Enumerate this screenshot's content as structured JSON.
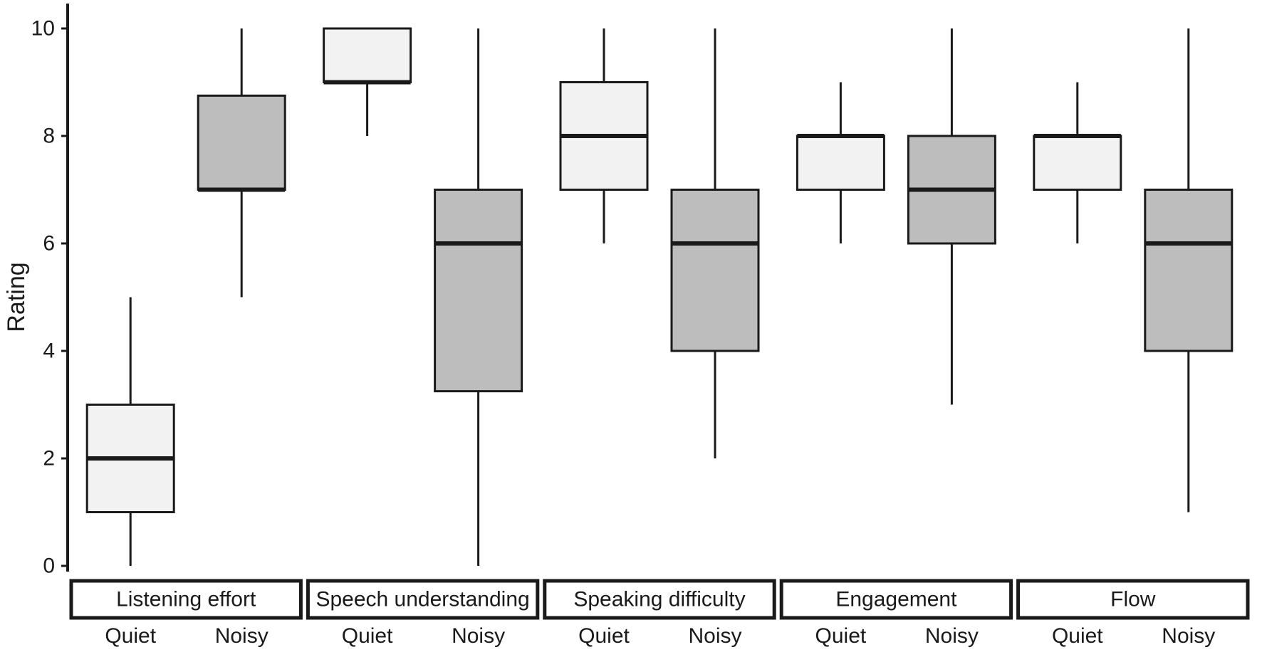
{
  "chart_data": {
    "type": "boxplot",
    "title": "",
    "ylabel": "Rating",
    "xlabel": "",
    "ylim": [
      0,
      10
    ],
    "yticks": [
      0,
      2,
      4,
      6,
      8,
      10
    ],
    "condition_labels": [
      "Quiet",
      "Noisy"
    ],
    "colors": {
      "quiet_fill": "#f2f2f2",
      "noisy_fill": "#bdbdbd",
      "stroke": "#1a1a1a",
      "background": "#ffffff"
    },
    "groups": [
      {
        "label": "Listening effort",
        "boxes": [
          {
            "label": "Quiet",
            "fill": "quiet_fill",
            "min": 0,
            "q1": 1,
            "median": 2,
            "q3": 3,
            "max": 5
          },
          {
            "label": "Noisy",
            "fill": "noisy_fill",
            "min": 5,
            "q1": 7,
            "median": 7,
            "q3": 8.75,
            "max": 10
          }
        ]
      },
      {
        "label": "Speech understanding",
        "boxes": [
          {
            "label": "Quiet",
            "fill": "quiet_fill",
            "min": 8,
            "q1": 9,
            "median": 9,
            "q3": 10,
            "max": 10
          },
          {
            "label": "Noisy",
            "fill": "noisy_fill",
            "min": 0,
            "q1": 3.25,
            "median": 6,
            "q3": 7,
            "max": 10
          }
        ]
      },
      {
        "label": "Speaking difficulty",
        "boxes": [
          {
            "label": "Quiet",
            "fill": "quiet_fill",
            "min": 6,
            "q1": 7,
            "median": 8,
            "q3": 9,
            "max": 10
          },
          {
            "label": "Noisy",
            "fill": "noisy_fill",
            "min": 2,
            "q1": 4,
            "median": 6,
            "q3": 7,
            "max": 10
          }
        ]
      },
      {
        "label": "Engagement",
        "boxes": [
          {
            "label": "Quiet",
            "fill": "quiet_fill",
            "min": 6,
            "q1": 7,
            "median": 8,
            "q3": 8,
            "max": 9
          },
          {
            "label": "Noisy",
            "fill": "noisy_fill",
            "min": 3,
            "q1": 6,
            "median": 7,
            "q3": 8,
            "max": 10
          }
        ]
      },
      {
        "label": "Flow",
        "boxes": [
          {
            "label": "Quiet",
            "fill": "quiet_fill",
            "min": 6,
            "q1": 7,
            "median": 8,
            "q3": 8,
            "max": 9
          },
          {
            "label": "Noisy",
            "fill": "noisy_fill",
            "min": 1,
            "q1": 4,
            "median": 6,
            "q3": 7,
            "max": 10
          }
        ]
      }
    ]
  }
}
